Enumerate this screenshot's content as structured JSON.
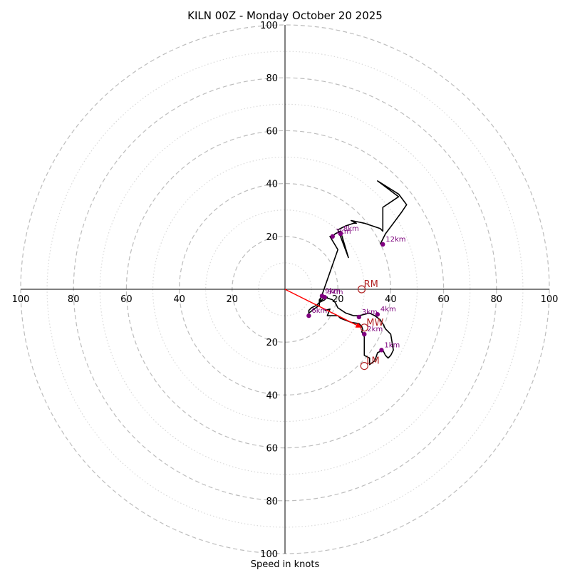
{
  "chart_data": {
    "type": "hodograph",
    "title": "KILN 00Z - Monday October 20 2025",
    "xlabel": "Speed in knots",
    "units": "knots",
    "axis_max": 100,
    "ring_major_step": 20,
    "ring_minor_step": 10,
    "x_ticks": [
      -100,
      -80,
      -60,
      -40,
      -20,
      20,
      40,
      60,
      80,
      100
    ],
    "x_tick_labels": [
      "100",
      "80",
      "60",
      "40",
      "20",
      "20",
      "40",
      "60",
      "80",
      "100"
    ],
    "y_ticks": [
      100,
      80,
      60,
      40,
      20,
      -20,
      -40,
      -60,
      -80,
      -100
    ],
    "y_tick_labels": [
      "100",
      "80",
      "60",
      "40",
      "20",
      "20",
      "40",
      "60",
      "80",
      "100"
    ],
    "hodograph_trace": [
      [
        15,
        -8
      ],
      [
        17,
        -7.5
      ],
      [
        16,
        -10
      ],
      [
        19,
        -10
      ],
      [
        20,
        -10
      ],
      [
        21,
        -11
      ],
      [
        25,
        -12.5
      ],
      [
        28,
        -13
      ],
      [
        29,
        -14
      ],
      [
        29.5,
        -15.5
      ],
      [
        29,
        -16
      ],
      [
        30,
        -18
      ],
      [
        30,
        -25
      ],
      [
        32,
        -26
      ],
      [
        32,
        -28.5
      ],
      [
        34,
        -27
      ],
      [
        35,
        -24
      ],
      [
        37,
        -23
      ],
      [
        38,
        -25
      ],
      [
        39,
        -26
      ],
      [
        40,
        -25
      ],
      [
        41,
        -23
      ],
      [
        40,
        -17
      ],
      [
        38,
        -15
      ],
      [
        37,
        -13
      ],
      [
        36,
        -11.5
      ],
      [
        34,
        -10
      ],
      [
        32,
        -9
      ],
      [
        28,
        -10
      ],
      [
        26,
        -10
      ],
      [
        23,
        -9
      ],
      [
        20,
        -7
      ],
      [
        19,
        -5
      ],
      [
        18,
        -4
      ],
      [
        15,
        -3
      ],
      [
        14,
        -4
      ],
      [
        12,
        -6
      ],
      [
        10,
        -7
      ],
      [
        9,
        -8
      ],
      [
        9,
        -9
      ],
      [
        13,
        -6
      ],
      [
        13,
        -5
      ],
      [
        15,
        -4
      ],
      [
        16,
        -3
      ],
      [
        14,
        -2.5
      ],
      [
        13,
        -4
      ],
      [
        13,
        -5
      ],
      [
        20,
        15
      ],
      [
        17,
        20
      ],
      [
        18,
        20
      ],
      [
        19,
        21
      ],
      [
        21,
        22
      ],
      [
        24,
        12
      ],
      [
        21,
        20
      ],
      [
        20,
        22.5
      ],
      [
        23,
        24
      ],
      [
        26,
        25
      ],
      [
        27,
        25
      ],
      [
        25,
        26
      ],
      [
        30,
        25
      ],
      [
        36,
        23
      ],
      [
        37,
        22
      ],
      [
        37,
        24
      ],
      [
        37,
        27
      ],
      [
        37,
        31
      ],
      [
        40,
        33
      ],
      [
        43,
        35
      ],
      [
        35,
        41
      ],
      [
        43,
        36
      ],
      [
        46,
        32
      ],
      [
        44,
        29
      ],
      [
        41,
        25
      ],
      [
        38,
        21
      ],
      [
        37,
        19
      ],
      [
        36,
        17
      ]
    ],
    "height_markers": [
      {
        "label": "1km",
        "u": 36.5,
        "v": -23
      },
      {
        "label": "2km",
        "u": 30,
        "v": -17
      },
      {
        "label": "3km",
        "u": 28,
        "v": -10.5
      },
      {
        "label": "4km",
        "u": 35,
        "v": -9.5
      },
      {
        "label": "5km",
        "u": 15,
        "v": -3
      },
      {
        "label": "6km",
        "u": 9,
        "v": -10
      },
      {
        "label": "7km",
        "u": 18,
        "v": 20
      },
      {
        "label": "8km",
        "u": 21,
        "v": 21
      },
      {
        "label": "9km",
        "u": 14,
        "v": -2.5
      },
      {
        "label": "12km",
        "u": 37,
        "v": 17
      }
    ],
    "storm_motions": [
      {
        "label": "RM",
        "u": 29,
        "v": 0
      },
      {
        "label": "MW",
        "u": 30,
        "v": -14.5
      },
      {
        "label": "LM",
        "u": 30,
        "v": -29
      }
    ],
    "mean_wind_vector": {
      "u": 29,
      "v": -14.5
    },
    "colors": {
      "trace": "#000000",
      "marker": "#800080",
      "marker_label": "#7b007b",
      "motion": "#b22222",
      "vector": "#ff0000",
      "major_ring": "#bdbdbd",
      "minor_ring": "#d9d9d9"
    }
  }
}
